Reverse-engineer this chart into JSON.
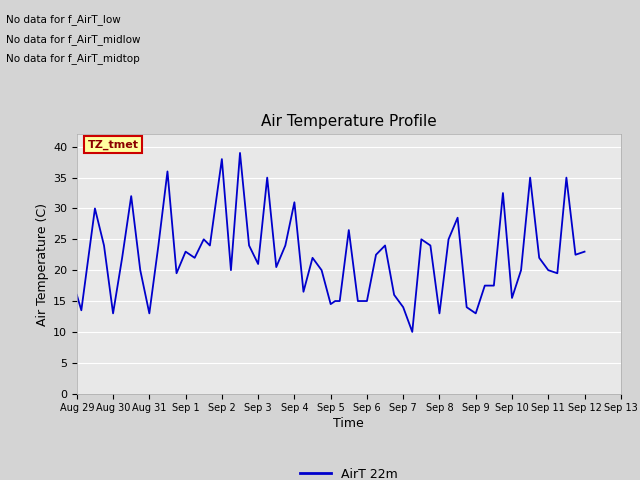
{
  "title": "Air Temperature Profile",
  "xlabel": "Time",
  "ylabel": "Air Temperature (C)",
  "legend_label": "AirT 22m",
  "line_color": "#0000cc",
  "ylim": [
    0,
    42
  ],
  "yticks": [
    0,
    5,
    10,
    15,
    20,
    25,
    30,
    35,
    40
  ],
  "annotations_text": [
    "No data for f_AirT_low",
    "No data for f_AirT_midlow",
    "No data for f_AirT_midtop"
  ],
  "legend_box_text": "TZ_tmet",
  "x_labels": [
    "Aug 29",
    "Aug 30",
    "Aug 31",
    "Sep 1",
    "Sep 2",
    "Sep 3",
    "Sep 4",
    "Sep 5",
    "Sep 6",
    "Sep 7",
    "Sep 8",
    "Sep 9",
    "Sep 10",
    "Sep 11",
    "Sep 12",
    "Sep 13"
  ],
  "time_data": [
    0,
    0.125,
    0.5,
    0.75,
    1.0,
    1.25,
    1.5,
    1.75,
    2.0,
    2.25,
    2.5,
    2.75,
    3.0,
    3.25,
    3.5,
    3.67,
    4.0,
    4.25,
    4.5,
    4.75,
    5.0,
    5.25,
    5.5,
    5.75,
    6.0,
    6.25,
    6.5,
    6.75,
    7.0,
    7.125,
    7.25,
    7.5,
    7.75,
    8.0,
    8.25,
    8.5,
    8.75,
    9.0,
    9.25,
    9.5,
    9.75,
    10.0,
    10.25,
    10.5,
    10.75,
    11.0,
    11.25,
    11.5,
    11.75,
    12.0,
    12.25,
    12.5,
    12.75,
    13.0,
    13.25,
    13.5,
    13.75,
    14.0
  ],
  "temp_data": [
    16,
    13.5,
    30,
    24,
    13,
    22,
    32,
    20,
    13,
    24,
    36,
    19.5,
    23,
    22,
    25,
    24,
    38,
    20,
    39,
    24,
    21,
    35,
    20.5,
    24,
    31,
    16.5,
    22,
    20,
    14.5,
    15,
    15,
    26.5,
    15,
    15,
    22.5,
    24,
    16,
    14,
    10,
    25,
    24,
    13,
    25,
    28.5,
    14,
    13,
    17.5,
    17.5,
    32.5,
    15.5,
    20,
    35,
    22,
    20,
    19.5,
    35,
    22.5,
    23
  ]
}
